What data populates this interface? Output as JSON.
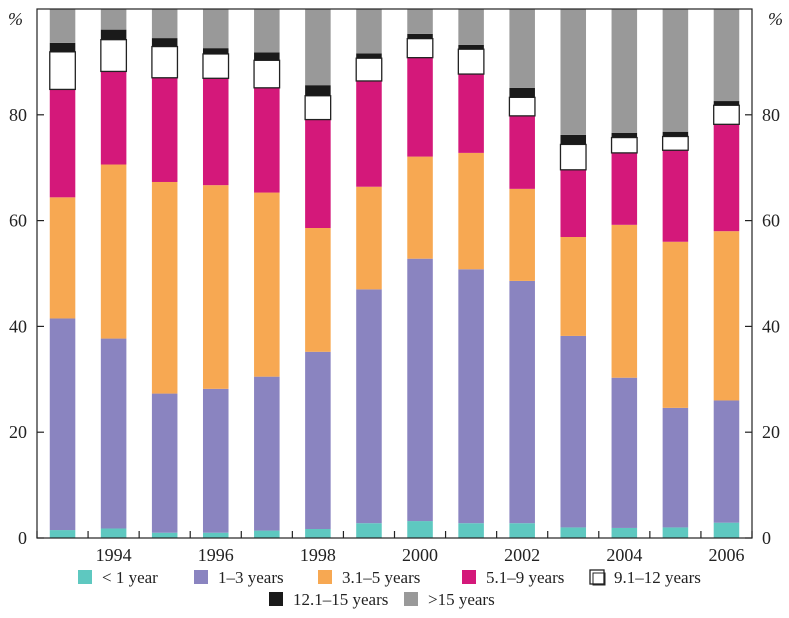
{
  "chart_data": {
    "type": "bar",
    "stacked": true,
    "y_unit_label": "%",
    "ylim": [
      0,
      100
    ],
    "yticks": [
      0,
      20,
      40,
      60,
      80
    ],
    "x": [
      "1993",
      "1994",
      "1995",
      "1996",
      "1997",
      "1998",
      "1999",
      "2000",
      "2001",
      "2002",
      "2003",
      "2004",
      "2005",
      "2006"
    ],
    "x_tick_labels": [
      "",
      "1994",
      "",
      "1996",
      "",
      "1998",
      "",
      "2000",
      "",
      "2002",
      "",
      "2004",
      "",
      "2006"
    ],
    "grid": false,
    "legend_position": "bottom",
    "series": [
      {
        "name": "< 1 year",
        "color": "#5ec8c0",
        "values": [
          1.5,
          1.8,
          1.0,
          1.0,
          1.4,
          1.7,
          2.8,
          3.2,
          2.8,
          2.8,
          2.0,
          1.9,
          2.0,
          2.9
        ]
      },
      {
        "name": "1–3 years",
        "color": "#8a84c0",
        "values": [
          40.0,
          35.9,
          26.3,
          27.2,
          29.1,
          33.5,
          44.2,
          49.6,
          48.0,
          45.8,
          36.2,
          28.4,
          22.6,
          23.1
        ]
      },
      {
        "name": "3.1–5 years",
        "color": "#f7a852",
        "values": [
          22.9,
          32.9,
          40.0,
          38.5,
          34.8,
          23.4,
          19.4,
          19.3,
          22.0,
          17.4,
          18.7,
          28.9,
          31.4,
          32.0
        ]
      },
      {
        "name": "5.1–9 years",
        "color": "#d4187a",
        "values": [
          20.4,
          17.6,
          19.7,
          20.2,
          19.8,
          20.5,
          20.0,
          18.7,
          14.9,
          13.8,
          12.7,
          13.6,
          17.3,
          20.2
        ]
      },
      {
        "name": "9.1–12 years",
        "color": "#ffffff",
        "values": [
          7.1,
          6.0,
          5.9,
          4.6,
          5.2,
          4.5,
          4.3,
          3.6,
          4.7,
          3.5,
          4.8,
          2.9,
          2.6,
          3.6
        ]
      },
      {
        "name": "12.1–15 years",
        "color": "#1a1a1a",
        "values": [
          1.7,
          1.9,
          1.6,
          1.1,
          1.5,
          2.0,
          0.9,
          0.9,
          0.8,
          1.8,
          1.8,
          0.9,
          0.9,
          0.8
        ]
      },
      {
        "name": ">15 years",
        "color": "#999999",
        "values": [
          6.4,
          3.9,
          5.5,
          7.4,
          8.2,
          14.4,
          8.4,
          4.7,
          6.8,
          14.9,
          23.8,
          23.4,
          23.2,
          17.4
        ]
      }
    ]
  }
}
